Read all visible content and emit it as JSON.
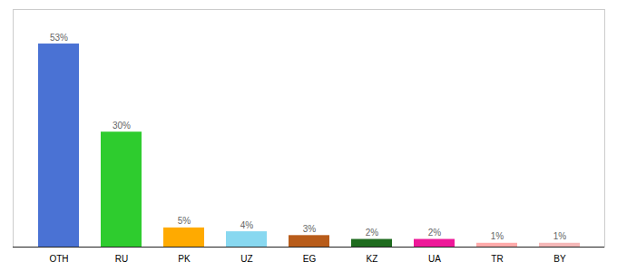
{
  "chart_data": {
    "type": "bar",
    "categories": [
      "OTH",
      "RU",
      "PK",
      "UZ",
      "EG",
      "KZ",
      "UA",
      "TR",
      "BY"
    ],
    "values": [
      53,
      30,
      5,
      4,
      3,
      2,
      2,
      1,
      1
    ],
    "value_labels": [
      "53%",
      "30%",
      "5%",
      "4%",
      "3%",
      "2%",
      "2%",
      "1%",
      "1%"
    ],
    "colors": [
      "#4a72d4",
      "#2ecc2e",
      "#ffaa00",
      "#88d8f0",
      "#b85c1a",
      "#1e6b1e",
      "#ee1899",
      "#ffaaaa",
      "#f5b8b8"
    ],
    "ylim": [
      0,
      62
    ],
    "data_labels": true,
    "tick_labels": "x"
  }
}
